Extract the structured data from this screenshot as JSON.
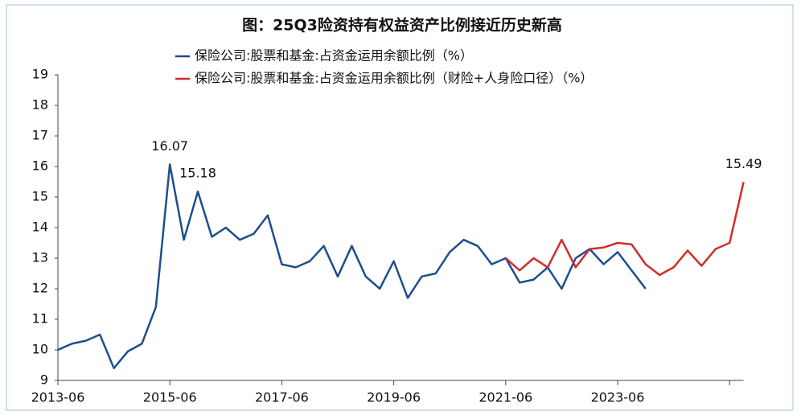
{
  "chart_data": {
    "type": "line",
    "title": "图：25Q3险资持有权益资产比例接近历史新高",
    "categories": [
      "2013-06",
      "2013-09",
      "2013-12",
      "2014-03",
      "2014-06",
      "2014-09",
      "2014-12",
      "2015-03",
      "2015-06",
      "2015-09",
      "2015-12",
      "2016-03",
      "2016-06",
      "2016-09",
      "2016-12",
      "2017-03",
      "2017-06",
      "2017-09",
      "2017-12",
      "2018-03",
      "2018-06",
      "2018-09",
      "2018-12",
      "2019-03",
      "2019-06",
      "2019-09",
      "2019-12",
      "2020-03",
      "2020-06",
      "2020-09",
      "2020-12",
      "2021-03",
      "2021-06",
      "2021-09",
      "2021-12",
      "2022-03",
      "2022-06",
      "2022-09",
      "2022-12",
      "2023-03",
      "2023-06",
      "2023-09",
      "2023-12",
      "2024-03",
      "2024-06",
      "2024-09",
      "2024-12",
      "2025-03",
      "2025-06",
      "2025-09"
    ],
    "xticks": [
      "2013-06",
      "2015-06",
      "2017-06",
      "2019-06",
      "2021-06",
      "2023-06"
    ],
    "series": [
      {
        "name": "保险公司:股票和基金:占资金运用余额比例（%）",
        "color": "#1f4e8c",
        "labels_at": [
          8,
          10
        ],
        "values": [
          10.0,
          10.2,
          10.3,
          10.5,
          9.4,
          9.95,
          10.2,
          11.4,
          16.07,
          13.6,
          15.18,
          13.7,
          14.0,
          13.6,
          13.8,
          14.4,
          12.8,
          12.7,
          12.9,
          13.4,
          12.4,
          13.4,
          12.4,
          12.0,
          12.9,
          11.7,
          12.4,
          12.5,
          13.2,
          13.6,
          13.4,
          12.8,
          13.0,
          12.2,
          12.3,
          12.7,
          12.0,
          13.0,
          13.3,
          12.8,
          13.2,
          12.6,
          12.0,
          null,
          null,
          null,
          null,
          null,
          null,
          null
        ]
      },
      {
        "name": "保险公司:股票和基金:占资金运用余额比例（财险+人身险口径）（%）",
        "color": "#d02d2d",
        "labels_at": [
          49
        ],
        "values": [
          null,
          null,
          null,
          null,
          null,
          null,
          null,
          null,
          null,
          null,
          null,
          null,
          null,
          null,
          null,
          null,
          null,
          null,
          null,
          null,
          null,
          null,
          null,
          null,
          null,
          null,
          null,
          null,
          null,
          null,
          null,
          null,
          13.0,
          12.6,
          13.0,
          12.7,
          13.6,
          12.7,
          13.3,
          13.35,
          13.5,
          13.45,
          12.8,
          12.45,
          12.7,
          13.25,
          12.75,
          13.3,
          13.5,
          15.49
        ]
      }
    ],
    "ylim": [
      9,
      19
    ],
    "yticks": [
      9,
      10,
      11,
      12,
      13,
      14,
      15,
      16,
      17,
      18,
      19
    ],
    "grid": false
  }
}
